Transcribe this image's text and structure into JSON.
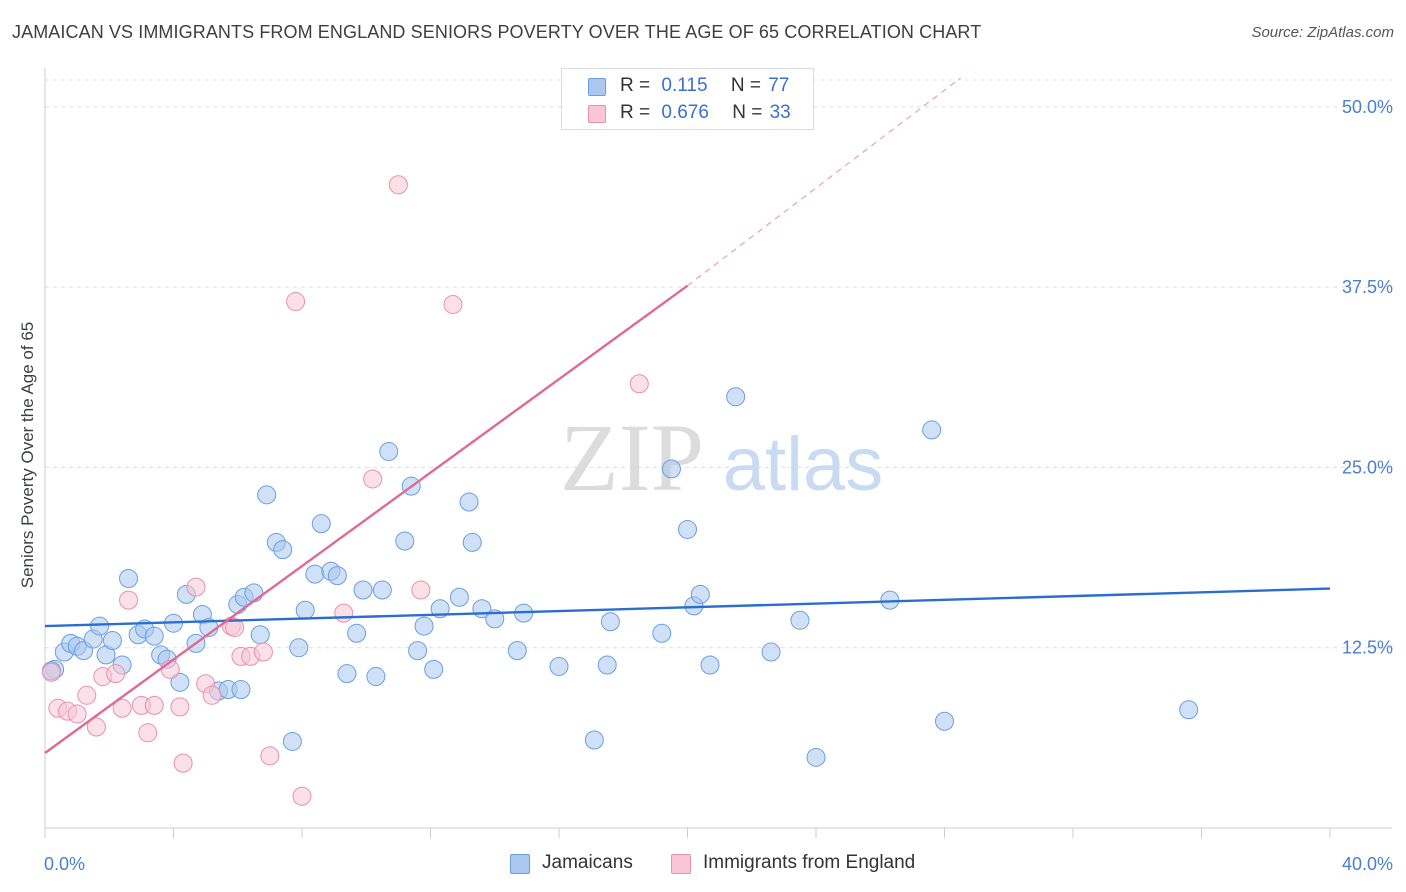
{
  "title": "JAMAICAN VS IMMIGRANTS FROM ENGLAND SENIORS POVERTY OVER THE AGE OF 65 CORRELATION CHART",
  "source": "Source: ZipAtlas.com",
  "watermark": {
    "zip": "ZIP",
    "atlas": "atlas"
  },
  "legend": {
    "rows": [
      {
        "r_label": "R =",
        "r_value": "0.115",
        "n_label": "N =",
        "n_value": "77",
        "color": "#aac8f0",
        "border": "#6a9ee0"
      },
      {
        "r_label": "R =",
        "r_value": "0.676",
        "n_label": "N =",
        "n_value": "33",
        "color": "#f8c6d6",
        "border": "#e890ae"
      }
    ]
  },
  "bottom_legend": {
    "items": [
      {
        "label": "Jamaicans",
        "color": "#aac8f0",
        "border": "#6a9ee0"
      },
      {
        "label": "Immigrants from England",
        "color": "#f8c6d6",
        "border": "#e890ae"
      }
    ]
  },
  "chart_data": {
    "type": "scatter",
    "title": "JAMAICAN VS IMMIGRANTS FROM ENGLAND SENIORS POVERTY OVER THE AGE OF 65 CORRELATION CHART",
    "xlabel": "",
    "ylabel": "Seniors Poverty Over the Age of 65",
    "xlim": [
      0,
      40
    ],
    "ylim": [
      0,
      52
    ],
    "x_tick_labels": [
      "0.0%",
      "40.0%"
    ],
    "y_ticks": [
      12.5,
      25.0,
      37.5,
      50.0
    ],
    "y_tick_labels": [
      "12.5%",
      "25.0%",
      "37.5%",
      "50.0%"
    ],
    "grid": "horizontal dashed",
    "legend_position": "top-center",
    "series": [
      {
        "name": "Jamaicans",
        "color": "#6a9ee0",
        "fill": "#aac8f0",
        "trend": {
          "x": [
            0,
            40
          ],
          "y": [
            14.0,
            16.6
          ],
          "color": "#2a6fd0"
        },
        "points": [
          [
            0.3,
            11.0
          ],
          [
            0.6,
            12.2
          ],
          [
            0.8,
            12.8
          ],
          [
            1.0,
            12.6
          ],
          [
            1.2,
            12.3
          ],
          [
            1.5,
            13.1
          ],
          [
            1.7,
            14.0
          ],
          [
            1.9,
            12.0
          ],
          [
            2.1,
            13.0
          ],
          [
            2.4,
            11.3
          ],
          [
            2.6,
            17.3
          ],
          [
            2.9,
            13.4
          ],
          [
            3.1,
            13.8
          ],
          [
            3.4,
            13.3
          ],
          [
            3.6,
            12.0
          ],
          [
            3.8,
            11.7
          ],
          [
            4.0,
            14.2
          ],
          [
            4.2,
            10.1
          ],
          [
            4.4,
            16.2
          ],
          [
            4.7,
            12.8
          ],
          [
            4.9,
            14.8
          ],
          [
            5.1,
            13.9
          ],
          [
            5.4,
            9.5
          ],
          [
            5.7,
            9.6
          ],
          [
            6.0,
            15.5
          ],
          [
            6.2,
            16.0
          ],
          [
            6.5,
            16.3
          ],
          [
            6.7,
            13.4
          ],
          [
            6.9,
            23.1
          ],
          [
            7.2,
            19.8
          ],
          [
            7.4,
            19.3
          ],
          [
            7.7,
            6.0
          ],
          [
            7.9,
            12.5
          ],
          [
            8.1,
            15.1
          ],
          [
            8.4,
            17.6
          ],
          [
            8.6,
            21.1
          ],
          [
            8.9,
            17.8
          ],
          [
            9.1,
            17.5
          ],
          [
            9.4,
            10.7
          ],
          [
            9.7,
            13.5
          ],
          [
            9.9,
            16.5
          ],
          [
            10.3,
            10.5
          ],
          [
            10.5,
            16.5
          ],
          [
            10.7,
            26.1
          ],
          [
            11.2,
            19.9
          ],
          [
            11.4,
            23.7
          ],
          [
            11.6,
            12.3
          ],
          [
            11.8,
            14.0
          ],
          [
            12.1,
            11.0
          ],
          [
            12.3,
            15.2
          ],
          [
            12.9,
            16.0
          ],
          [
            13.2,
            22.6
          ],
          [
            13.3,
            19.8
          ],
          [
            13.6,
            15.2
          ],
          [
            14.0,
            14.5
          ],
          [
            14.7,
            12.3
          ],
          [
            14.9,
            14.9
          ],
          [
            16.0,
            11.2
          ],
          [
            17.1,
            6.1
          ],
          [
            17.5,
            11.3
          ],
          [
            17.6,
            14.3
          ],
          [
            19.2,
            13.5
          ],
          [
            19.5,
            24.9
          ],
          [
            20.0,
            20.7
          ],
          [
            20.2,
            15.4
          ],
          [
            20.4,
            16.2
          ],
          [
            20.7,
            11.3
          ],
          [
            21.5,
            29.9
          ],
          [
            22.6,
            12.2
          ],
          [
            23.5,
            14.4
          ],
          [
            24.0,
            4.9
          ],
          [
            26.3,
            15.8
          ],
          [
            27.6,
            27.6
          ],
          [
            28.0,
            7.4
          ],
          [
            35.6,
            8.2
          ],
          [
            0.2,
            10.9
          ],
          [
            6.1,
            9.6
          ]
        ]
      },
      {
        "name": "Immigrants from England",
        "color": "#e890ae",
        "fill": "#f8c6d6",
        "trend": {
          "x": [
            0,
            20
          ],
          "y": [
            5.2,
            37.6
          ],
          "dashed_to": [
            28.5,
            52.0
          ],
          "color": "#e06a95"
        },
        "points": [
          [
            0.2,
            10.8
          ],
          [
            0.4,
            8.3
          ],
          [
            0.7,
            8.1
          ],
          [
            1.0,
            7.9
          ],
          [
            1.3,
            9.2
          ],
          [
            1.6,
            7.0
          ],
          [
            1.8,
            10.5
          ],
          [
            2.2,
            10.7
          ],
          [
            2.4,
            8.3
          ],
          [
            2.6,
            15.8
          ],
          [
            3.0,
            8.5
          ],
          [
            3.2,
            6.6
          ],
          [
            3.4,
            8.5
          ],
          [
            3.9,
            11.0
          ],
          [
            4.2,
            8.4
          ],
          [
            4.3,
            4.5
          ],
          [
            4.7,
            16.7
          ],
          [
            5.0,
            10.0
          ],
          [
            5.2,
            9.2
          ],
          [
            5.8,
            14.0
          ],
          [
            6.1,
            11.9
          ],
          [
            6.4,
            11.9
          ],
          [
            6.8,
            12.2
          ],
          [
            7.0,
            5.0
          ],
          [
            7.8,
            36.5
          ],
          [
            8.0,
            2.2
          ],
          [
            9.3,
            14.9
          ],
          [
            10.2,
            24.2
          ],
          [
            11.0,
            44.6
          ],
          [
            11.7,
            16.5
          ],
          [
            12.7,
            36.3
          ],
          [
            18.5,
            30.8
          ],
          [
            5.9,
            13.9
          ]
        ]
      }
    ]
  }
}
